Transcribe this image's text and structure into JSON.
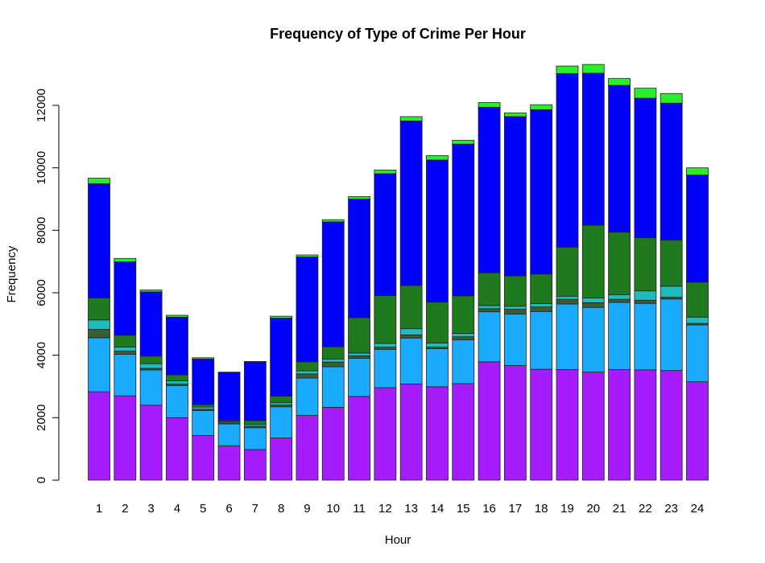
{
  "chart_data": {
    "type": "bar",
    "stacked": true,
    "title": "Frequency of Type of Crime Per Hour",
    "xlabel": "Hour",
    "ylabel": "Frequency",
    "ylim": [
      0,
      13300
    ],
    "yticks": [
      0,
      2000,
      4000,
      6000,
      8000,
      10000,
      12000
    ],
    "grid": false,
    "legend": "none",
    "categories": [
      "1",
      "2",
      "3",
      "4",
      "5",
      "6",
      "7",
      "8",
      "9",
      "10",
      "11",
      "12",
      "13",
      "14",
      "15",
      "16",
      "17",
      "18",
      "19",
      "20",
      "21",
      "22",
      "23",
      "24"
    ],
    "series": [
      {
        "color": "#a51cff",
        "values": [
          2830,
          2700,
          2400,
          2000,
          1430,
          1100,
          980,
          1350,
          2070,
          2330,
          2680,
          2960,
          3080,
          2990,
          3090,
          3790,
          3670,
          3550,
          3540,
          3460,
          3540,
          3530,
          3510,
          3150
        ]
      },
      {
        "color": "#1aabff",
        "values": [
          1730,
          1330,
          1130,
          1030,
          800,
          700,
          700,
          1000,
          1200,
          1300,
          1220,
          1230,
          1470,
          1220,
          1400,
          1600,
          1650,
          1850,
          2100,
          2070,
          2150,
          2130,
          2290,
          1820
        ]
      },
      {
        "color": "#3d5c33",
        "values": [
          270,
          100,
          50,
          50,
          40,
          30,
          50,
          60,
          130,
          150,
          80,
          70,
          100,
          50,
          100,
          100,
          150,
          150,
          150,
          150,
          100,
          100,
          60,
          50
        ]
      },
      {
        "color": "#22bbbb",
        "values": [
          300,
          130,
          150,
          100,
          70,
          40,
          60,
          70,
          100,
          100,
          90,
          120,
          200,
          130,
          110,
          100,
          100,
          100,
          100,
          150,
          150,
          300,
          350,
          200
        ]
      },
      {
        "color": "#1f7a1f",
        "values": [
          700,
          380,
          240,
          190,
          80,
          40,
          120,
          210,
          290,
          390,
          1130,
          1530,
          1380,
          1310,
          1200,
          1050,
          970,
          950,
          1570,
          2330,
          2000,
          1700,
          1480,
          1120
        ]
      },
      {
        "color": "#0000ff",
        "values": [
          3660,
          2350,
          2060,
          1850,
          1460,
          1530,
          1870,
          2500,
          3360,
          4000,
          3800,
          3900,
          5270,
          4550,
          4860,
          5300,
          5100,
          5260,
          5560,
          4870,
          4700,
          4470,
          4380,
          3430
        ]
      },
      {
        "color": "#29ee29",
        "values": [
          180,
          110,
          60,
          60,
          40,
          20,
          20,
          60,
          60,
          70,
          80,
          120,
          140,
          140,
          120,
          150,
          120,
          160,
          240,
          280,
          220,
          320,
          310,
          230
        ]
      }
    ]
  }
}
